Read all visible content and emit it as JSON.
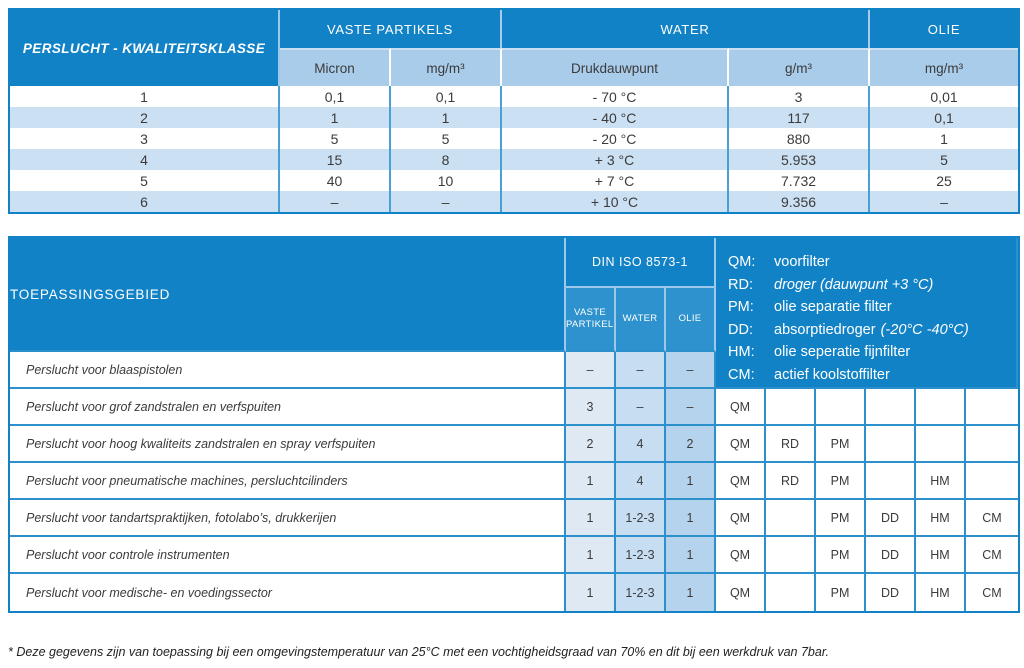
{
  "colors": {
    "header_blue": "#1282C6",
    "subheader_light_blue": "#A9CCEA",
    "alt_row_blue": "#CCE0F4",
    "grid_line_blue": "#2B90CB",
    "din_column_tints": [
      "#DFE9F4",
      "#C6DDF2",
      "#B5D3ED"
    ]
  },
  "table1": {
    "title": "PERSLUCHT - KWALITEITSKLASSE",
    "groups": [
      "VASTE PARTIKELS",
      "WATER",
      "OLIE"
    ],
    "subheaders": [
      "Micron",
      "mg/m³",
      "Drukdauwpunt",
      "g/m³",
      "mg/m³"
    ],
    "rows": [
      [
        "1",
        "0,1",
        "0,1",
        "- 70 °C",
        "3",
        "0,01"
      ],
      [
        "2",
        "1",
        "1",
        "- 40 °C",
        "117",
        "0,1"
      ],
      [
        "3",
        "5",
        "5",
        "- 20 °C",
        "880",
        "1"
      ],
      [
        "4",
        "15",
        "8",
        "+ 3 °C",
        "5.953",
        "5"
      ],
      [
        "5",
        "40",
        "10",
        "+ 7 °C",
        "7.732",
        "25"
      ],
      [
        "6",
        "–",
        "–",
        "+ 10 °C",
        "9.356",
        "–"
      ]
    ]
  },
  "table2": {
    "title": "TOEPASSINGSGEBIED",
    "group": "DIN ISO 8573-1",
    "subheaders": [
      "VASTE PARTIKELS",
      "WATER",
      "OLIE"
    ],
    "legend": [
      {
        "code": "QM:",
        "desc": "voorfilter",
        "italic": false
      },
      {
        "code": "RD:",
        "desc": "droger (dauwpunt +3 °C)",
        "italic": true
      },
      {
        "code": "PM:",
        "desc": "olie separatie filter",
        "italic": false
      },
      {
        "code": "DD:",
        "desc": "absorptiedroger",
        "desc2": "(-20°C  -40°C)",
        "italic": false
      },
      {
        "code": "HM:",
        "desc": "olie seperatie fijnfilter",
        "italic": false
      },
      {
        "code": "CM:",
        "desc": "actief koolstoffilter",
        "italic": false
      }
    ],
    "rows": [
      {
        "label": "Perslucht voor blaaspistolen",
        "din": [
          "–",
          "–",
          "–"
        ],
        "codes": []
      },
      {
        "label": "Perslucht voor grof zandstralen en verfspuiten",
        "din": [
          "3",
          "–",
          "–"
        ],
        "codes": [
          "QM",
          "",
          "",
          "",
          "",
          ""
        ]
      },
      {
        "label": "Perslucht voor hoog kwaliteits zandstralen en spray verfspuiten",
        "din": [
          "2",
          "4",
          "2"
        ],
        "codes": [
          "QM",
          "RD",
          "PM",
          "",
          "",
          ""
        ]
      },
      {
        "label": "Perslucht voor pneumatische machines, persluchtcilinders",
        "din": [
          "1",
          "4",
          "1"
        ],
        "codes": [
          "QM",
          "RD",
          "PM",
          "",
          "HM",
          ""
        ]
      },
      {
        "label": "Perslucht voor tandartspraktijken, fotolabo’s, drukkerijen",
        "din": [
          "1",
          "1-2-3",
          "1"
        ],
        "codes": [
          "QM",
          "",
          "PM",
          "DD",
          "HM",
          "CM"
        ]
      },
      {
        "label": "Perslucht voor controle instrumenten",
        "din": [
          "1",
          "1-2-3",
          "1"
        ],
        "codes": [
          "QM",
          "",
          "PM",
          "DD",
          "HM",
          "CM"
        ]
      },
      {
        "label": "Perslucht voor medische- en voedingssector",
        "din": [
          "1",
          "1-2-3",
          "1"
        ],
        "codes": [
          "QM",
          "",
          "PM",
          "DD",
          "HM",
          "CM"
        ]
      }
    ]
  },
  "footnote": "* Deze gegevens zijn van toepassing bij een omgevingstemperatuur van 25°C met een vochtigheidsgraad van 70% en dit bij een werkdruk van 7bar."
}
